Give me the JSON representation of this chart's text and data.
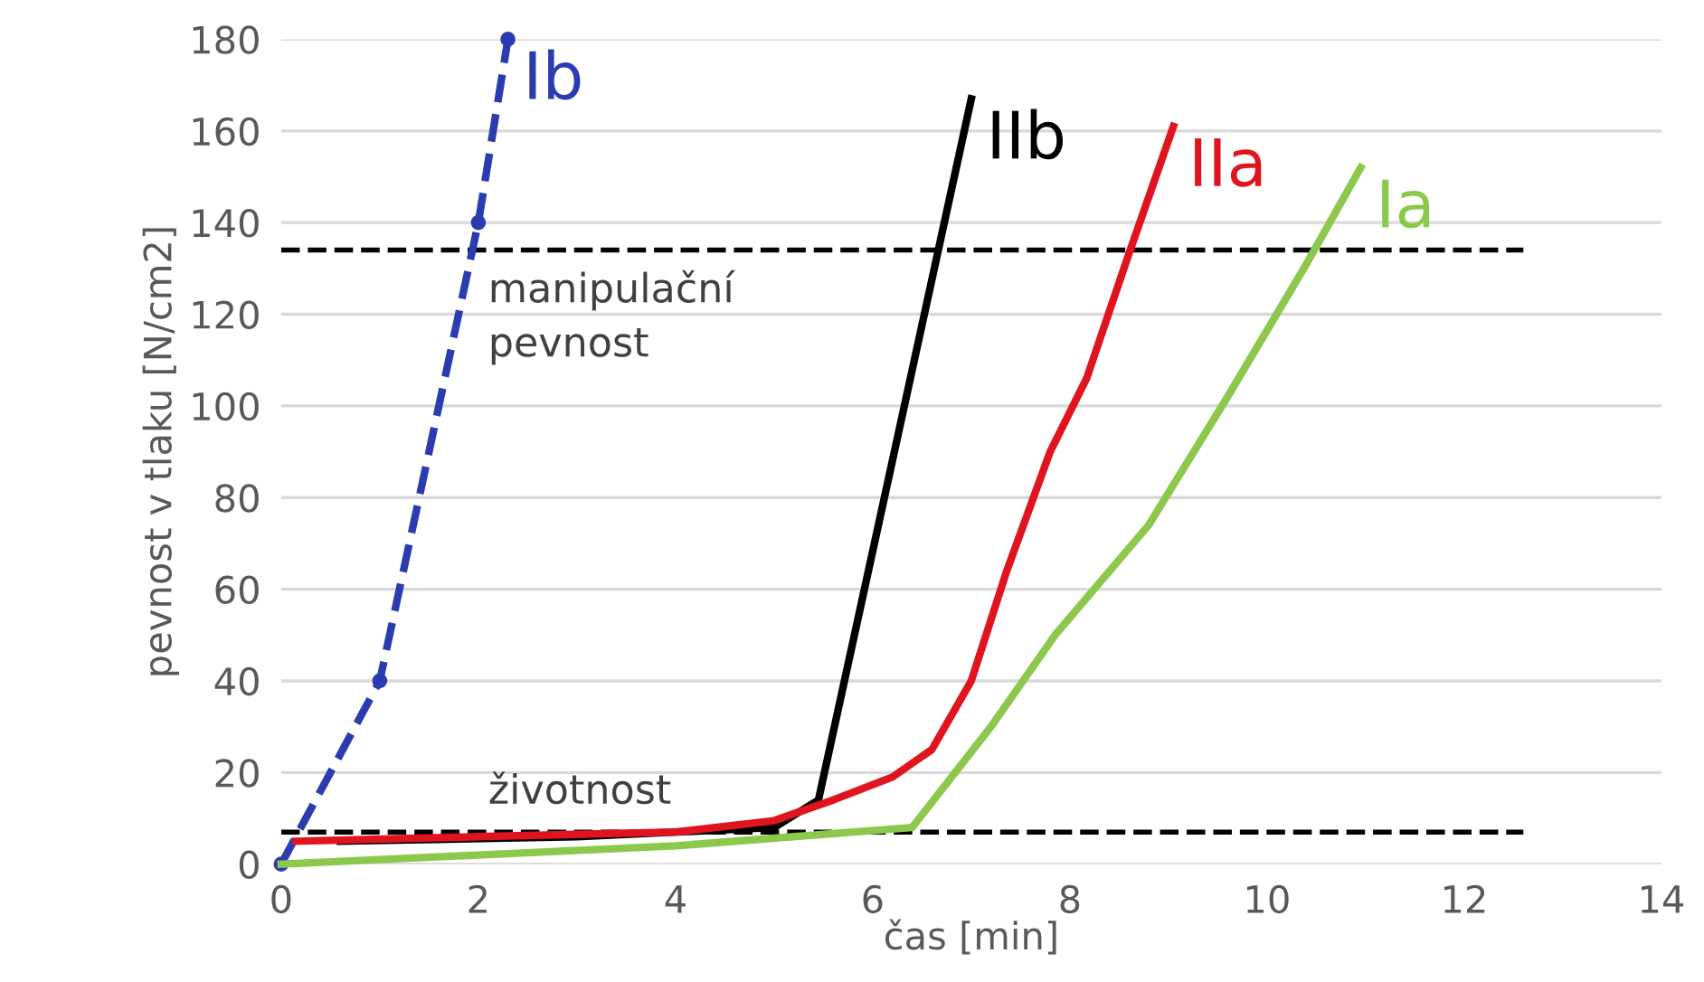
{
  "chart_data": {
    "type": "line",
    "xlabel": "čas [min]",
    "ylabel": "pevnost v tlaku [N/cm2]",
    "xlim": [
      0,
      14
    ],
    "xticks": [
      0,
      2,
      4,
      6,
      8,
      10,
      12,
      14
    ],
    "ylim": [
      0,
      180
    ],
    "yticks": [
      0,
      20,
      40,
      60,
      80,
      100,
      120,
      140,
      160,
      180
    ],
    "grid": "y",
    "series": [
      {
        "name": "Ib",
        "color": "#2a3cb0",
        "line_style": "dashed",
        "marker": "circle",
        "x": [
          0,
          1,
          2,
          2.3
        ],
        "values": [
          0,
          40,
          140,
          180
        ]
      },
      {
        "name": "IIb",
        "color": "#000000",
        "x": [
          0.6,
          3,
          5.0,
          5.45,
          7.0
        ],
        "values": [
          5,
          6,
          8,
          14,
          167
        ]
      },
      {
        "name": "IIa",
        "color": "#e0141e",
        "x": [
          0.15,
          2,
          4,
          5,
          5.6,
          6.2,
          6.6,
          7,
          7.36,
          7.8,
          8.17,
          8.58,
          9.05
        ],
        "values": [
          5,
          6,
          7,
          9.5,
          14,
          19,
          25,
          40,
          64,
          90,
          106,
          132,
          161
        ]
      },
      {
        "name": "Ia",
        "color": "#8cc84b",
        "x": [
          0,
          2,
          4,
          6.4,
          7.2,
          7.85,
          8.8,
          9.6,
          10.4,
          10.95
        ],
        "values": [
          0,
          2,
          4,
          8,
          30,
          50,
          74,
          102,
          131,
          152
        ]
      }
    ],
    "ref_lines": [
      {
        "axis": "y",
        "value": 134,
        "label": "manipulační\npevnost",
        "color": "#000000",
        "line_style": "dashed"
      },
      {
        "axis": "y",
        "value": 7,
        "label": "životnost",
        "color": "#000000",
        "line_style": "dashed"
      }
    ]
  }
}
